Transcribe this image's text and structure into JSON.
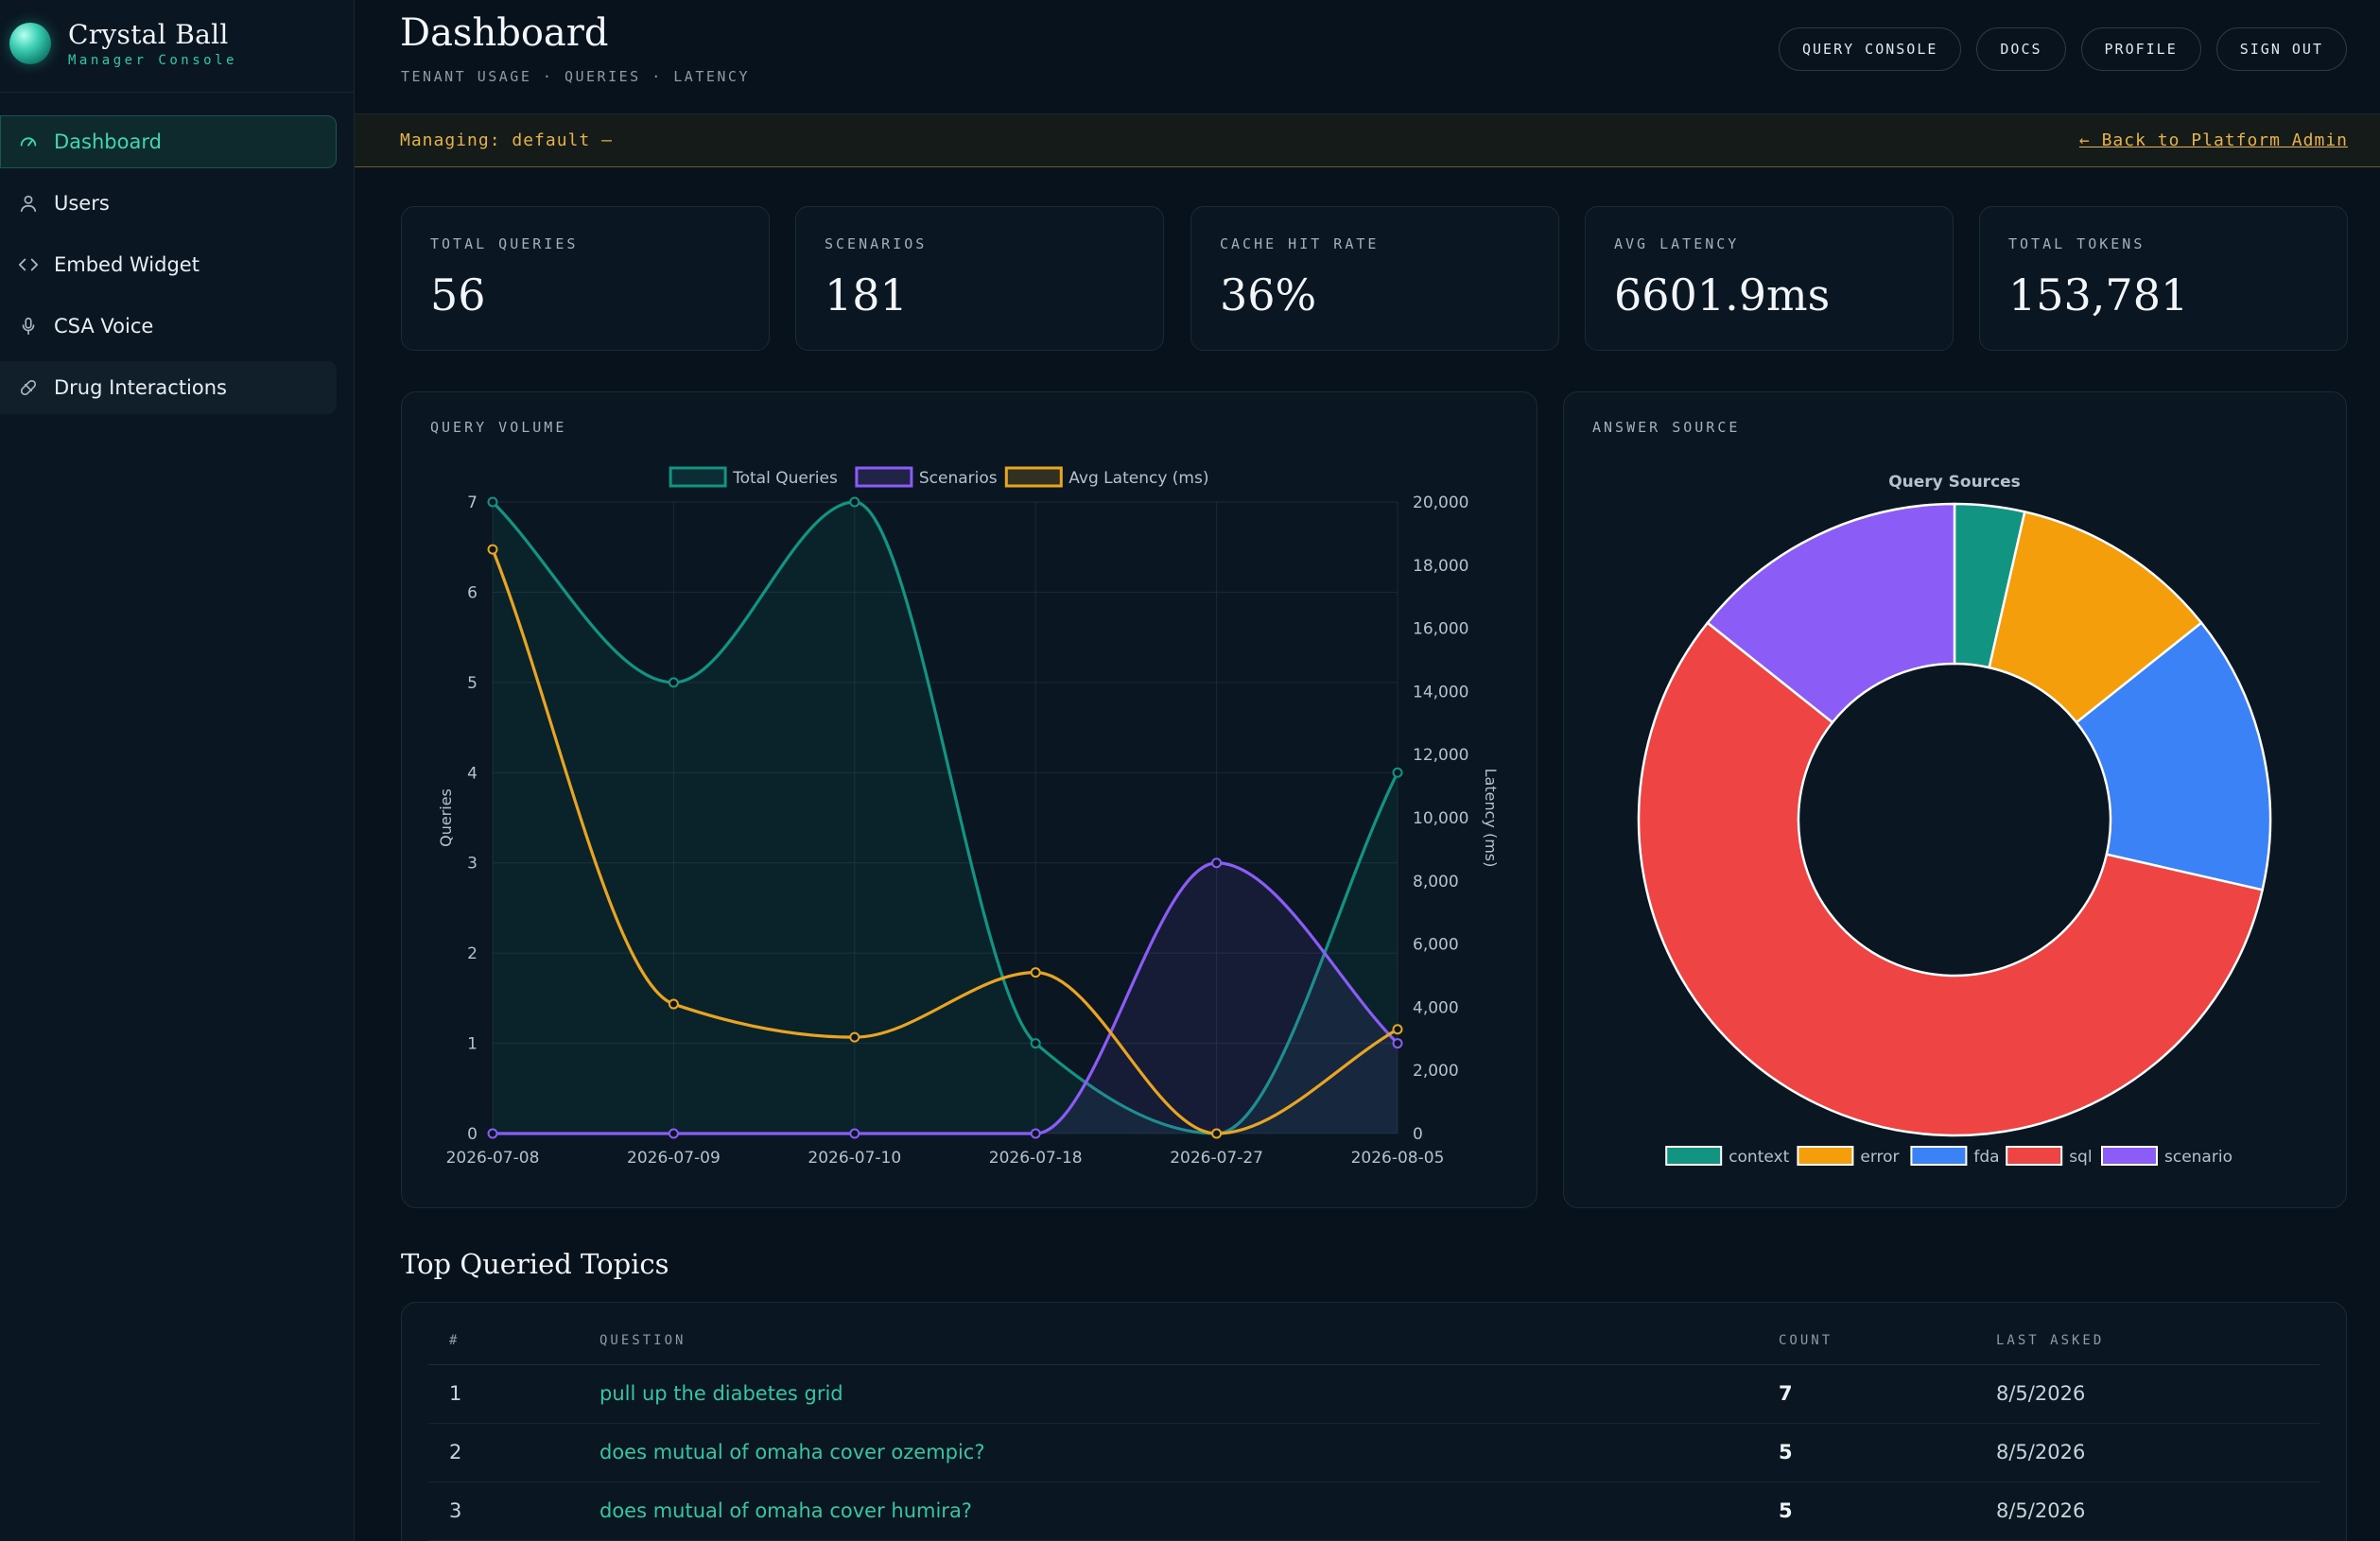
{
  "brand": {
    "title": "Crystal Ball",
    "subtitle": "Manager Console"
  },
  "sidebar": {
    "items": [
      {
        "label": "Dashboard",
        "icon": "gauge-icon",
        "active": true
      },
      {
        "label": "Users",
        "icon": "user-icon"
      },
      {
        "label": "Embed Widget",
        "icon": "code-icon"
      },
      {
        "label": "CSA Voice",
        "icon": "microphone-icon"
      },
      {
        "label": "Drug Interactions",
        "icon": "pill-icon"
      }
    ]
  },
  "header": {
    "title": "Dashboard",
    "subtitle": "TENANT USAGE · QUERIES · LATENCY",
    "buttons": [
      "QUERY CONSOLE",
      "DOCS",
      "PROFILE",
      "SIGN OUT"
    ]
  },
  "manage_bar": {
    "left": "Managing: default —",
    "right": "← Back to Platform Admin"
  },
  "stats": [
    {
      "label": "TOTAL QUERIES",
      "value": "56"
    },
    {
      "label": "SCENARIOS",
      "value": "181"
    },
    {
      "label": "CACHE HIT RATE",
      "value": "36%"
    },
    {
      "label": "AVG LATENCY",
      "value": "6601.9ms"
    },
    {
      "label": "TOTAL TOKENS",
      "value": "153,781"
    }
  ],
  "query_volume": {
    "panel_label": "QUERY VOLUME"
  },
  "answer_source": {
    "panel_label": "ANSWER SOURCE"
  },
  "chart_data": [
    {
      "type": "line",
      "x": [
        "2026-07-08",
        "2026-07-09",
        "2026-07-10",
        "2026-07-18",
        "2026-07-27",
        "2026-08-05"
      ],
      "series": [
        {
          "name": "Total Queries",
          "axis": "left",
          "values": [
            7,
            5,
            7,
            1,
            0,
            4
          ],
          "color": "#129483",
          "fill": true
        },
        {
          "name": "Scenarios",
          "axis": "left",
          "values": [
            0,
            0,
            0,
            0,
            3,
            1
          ],
          "color": "#8b5cf6",
          "fill": true
        },
        {
          "name": "Avg Latency (ms)",
          "axis": "right",
          "values": [
            18500,
            4100,
            3050,
            5100,
            0,
            3300
          ],
          "color": "#e9a522",
          "fill": false
        }
      ],
      "ylabel": "Queries",
      "y2label": "Latency (ms)",
      "ylim": [
        0,
        7
      ],
      "y2lim": [
        0,
        20000
      ],
      "yticks": [
        "0",
        "1",
        "2",
        "3",
        "4",
        "5",
        "6",
        "7"
      ],
      "y2ticks": [
        "0",
        "2,000",
        "4,000",
        "6,000",
        "8,000",
        "10,000",
        "12,000",
        "14,000",
        "16,000",
        "18,000",
        "20,000"
      ],
      "grid": true,
      "legend": "top-center"
    },
    {
      "type": "pie",
      "title": "Query Sources",
      "donut": true,
      "labels": [
        "context",
        "error",
        "fda",
        "sql",
        "scenario"
      ],
      "values": [
        2,
        6,
        8,
        32,
        8
      ],
      "colors": [
        "#129483",
        "#f59e0b",
        "#3b82f6",
        "#ef4444",
        "#8b5cf6"
      ],
      "legend": "bottom"
    }
  ],
  "topics": {
    "title": "Top Queried Topics",
    "headers": [
      "#",
      "QUESTION",
      "COUNT",
      "LAST ASKED"
    ],
    "rows": [
      {
        "n": "1",
        "question": "pull up the diabetes grid",
        "count": "7",
        "last": "8/5/2026"
      },
      {
        "n": "2",
        "question": "does mutual of omaha cover ozempic?",
        "count": "5",
        "last": "8/5/2026"
      },
      {
        "n": "3",
        "question": "does mutual of omaha cover humira?",
        "count": "5",
        "last": "8/5/2026"
      }
    ]
  }
}
